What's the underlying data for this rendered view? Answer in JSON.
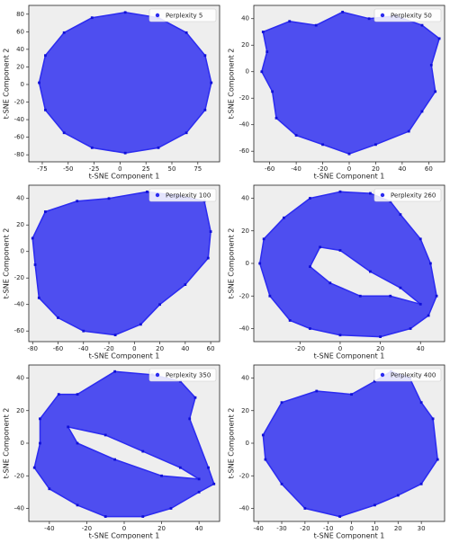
{
  "chart_data": [
    {
      "type": "scatter",
      "xlabel": "t-SNE Component 1",
      "ylabel": "t-SNE Component 2",
      "legend": "upper right",
      "xlim": [
        -88,
        96
      ],
      "ylim": [
        -88,
        90
      ],
      "xticks": [
        -75,
        -50,
        -25,
        0,
        25,
        50,
        75
      ],
      "yticks": [
        -80,
        -60,
        -40,
        -20,
        0,
        20,
        40,
        60,
        80
      ],
      "series": [
        {
          "name": "Perplexity 5",
          "color": "#2b2bf0",
          "x": [
            88,
            82,
            64,
            37,
            5,
            -27,
            -54,
            -72,
            -78,
            -72,
            -54,
            -27,
            5,
            37,
            64,
            82
          ],
          "y": [
            2,
            33,
            59,
            76,
            82,
            76,
            59,
            33,
            2,
            -29,
            -55,
            -72,
            -78,
            -72,
            -55,
            -29
          ]
        }
      ]
    },
    {
      "type": "scatter",
      "xlabel": "t-SNE Component 1",
      "ylabel": "t-SNE Component 2",
      "legend": "upper right",
      "xlim": [
        -72,
        72
      ],
      "ylim": [
        -68,
        50
      ],
      "xticks": [
        -60,
        -40,
        -20,
        0,
        20,
        40,
        60
      ],
      "yticks": [
        -60,
        -40,
        -20,
        0,
        20,
        40
      ],
      "series": [
        {
          "name": "Perplexity 50",
          "color": "#2b2bf0",
          "x": [
            -65,
            -45,
            -25,
            -5,
            15,
            35,
            55,
            68,
            62,
            65,
            55,
            45,
            20,
            0,
            -20,
            -40,
            -55,
            -58,
            -66,
            -62
          ],
          "y": [
            30,
            38,
            35,
            45,
            40,
            42,
            35,
            25,
            5,
            -15,
            -30,
            -45,
            -55,
            -62,
            -55,
            -48,
            -35,
            -15,
            0,
            15
          ]
        }
      ]
    },
    {
      "type": "scatter",
      "xlabel": "t-SNE Component 1",
      "ylabel": "t-SNE Component 2",
      "legend": "upper right",
      "xlim": [
        -83,
        67
      ],
      "ylim": [
        -68,
        50
      ],
      "xticks": [
        -80,
        -60,
        -40,
        -20,
        0,
        20,
        40,
        60
      ],
      "yticks": [
        -60,
        -40,
        -20,
        0,
        20,
        40
      ],
      "series": [
        {
          "name": "Perplexity 100",
          "color": "#2b2bf0",
          "x": [
            -70,
            -45,
            -20,
            10,
            35,
            55,
            60,
            58,
            40,
            20,
            5,
            -15,
            -40,
            -60,
            -75,
            -78,
            -80
          ],
          "y": [
            30,
            38,
            40,
            45,
            42,
            38,
            15,
            -5,
            -25,
            -40,
            -55,
            -63,
            -60,
            -50,
            -35,
            -10,
            10
          ]
        }
      ]
    },
    {
      "type": "scatter",
      "xlabel": "t-SNE Component 1",
      "ylabel": "t-SNE Component 2",
      "legend": "upper right",
      "xlim": [
        -43,
        52
      ],
      "ylim": [
        -48,
        48
      ],
      "xticks": [
        -20,
        0,
        20,
        40
      ],
      "yticks": [
        -40,
        -20,
        0,
        20,
        40
      ],
      "series": [
        {
          "name": "Perplexity 260",
          "color": "#2b2bf0",
          "x": [
            -38,
            -28,
            -15,
            0,
            15,
            25,
            30,
            40,
            45,
            48,
            44,
            35,
            20,
            0,
            -15,
            -25,
            -35,
            -40,
            null,
            -10,
            0,
            15,
            30,
            40,
            25,
            10,
            -5,
            -15
          ],
          "y": [
            15,
            28,
            40,
            44,
            43,
            38,
            30,
            15,
            0,
            -20,
            -32,
            -40,
            -45,
            -44,
            -40,
            -35,
            -20,
            0,
            null,
            10,
            8,
            -5,
            -15,
            -25,
            -20,
            -20,
            -12,
            -2
          ]
        }
      ]
    },
    {
      "type": "scatter",
      "xlabel": "t-SNE Component 1",
      "ylabel": "t-SNE Component 2",
      "legend": "upper right",
      "xlim": [
        -51,
        51
      ],
      "ylim": [
        -48,
        48
      ],
      "xticks": [
        -40,
        -20,
        0,
        20,
        40
      ],
      "yticks": [
        -40,
        -20,
        0,
        20,
        40
      ],
      "series": [
        {
          "name": "Perplexity 350",
          "color": "#2b2bf0",
          "x": [
            -45,
            -35,
            -25,
            -5,
            15,
            30,
            38,
            35,
            45,
            48,
            40,
            25,
            10,
            -10,
            -25,
            -40,
            -48,
            -45,
            null,
            -30,
            -10,
            10,
            30,
            40,
            20,
            -5,
            -25
          ],
          "y": [
            15,
            30,
            30,
            44,
            42,
            38,
            28,
            15,
            -15,
            -25,
            -30,
            -40,
            -45,
            -45,
            -38,
            -28,
            -15,
            0,
            null,
            10,
            5,
            -5,
            -15,
            -22,
            -20,
            -10,
            0
          ]
        }
      ]
    },
    {
      "type": "scatter",
      "xlabel": "t-SNE Component 1",
      "ylabel": "t-SNE Component 2",
      "legend": "upper right",
      "xlim": [
        -42,
        40
      ],
      "ylim": [
        -48,
        48
      ],
      "xticks": [
        -40,
        -30,
        -20,
        -10,
        0,
        10,
        20,
        30
      ],
      "yticks": [
        -40,
        -20,
        0,
        20,
        40
      ],
      "series": [
        {
          "name": "Perplexity 400",
          "color": "#2b2bf0",
          "x": [
            -38,
            -30,
            -15,
            0,
            10,
            17,
            25,
            30,
            35,
            37,
            30,
            20,
            10,
            -5,
            -20,
            -30,
            -37
          ],
          "y": [
            5,
            25,
            32,
            30,
            38,
            44,
            40,
            25,
            15,
            -10,
            -25,
            -32,
            -38,
            -45,
            -40,
            -25,
            -10
          ]
        }
      ]
    }
  ]
}
